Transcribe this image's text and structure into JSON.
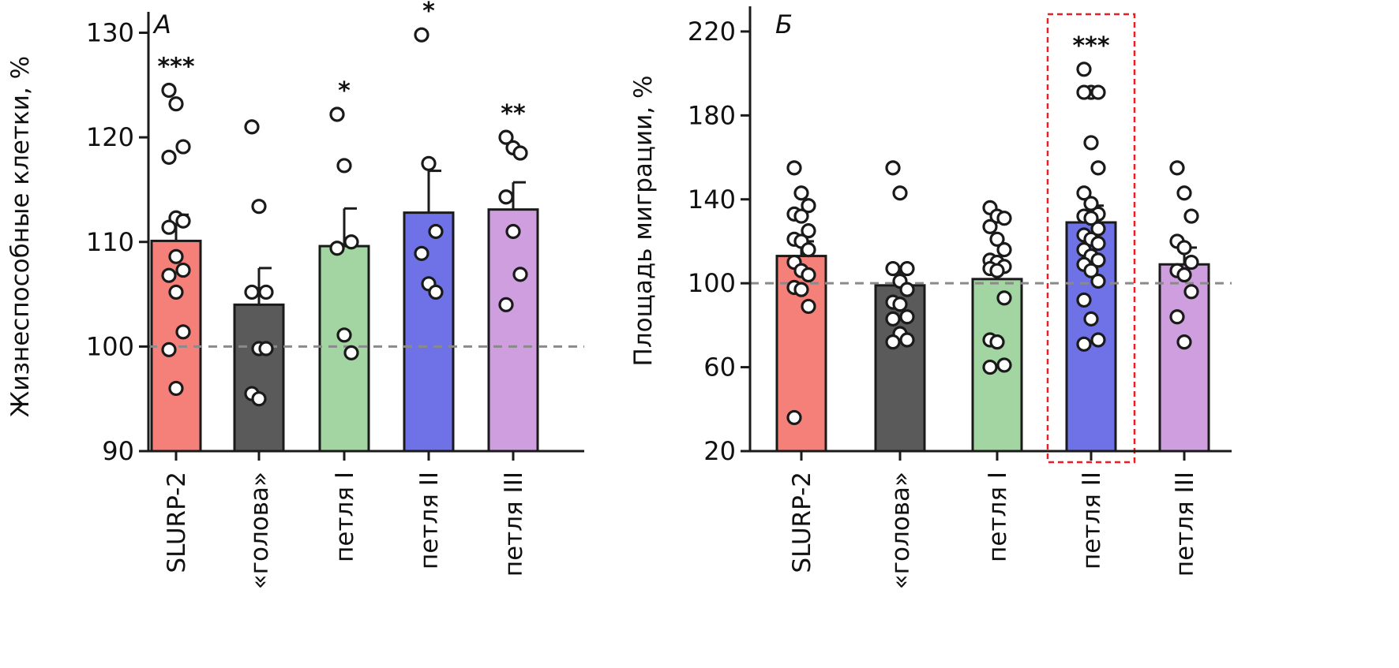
{
  "chart_data": [
    {
      "type": "bar",
      "panel_label": "А",
      "ylabel": "Жизнеспособные клетки, %",
      "ylim": [
        90,
        132
      ],
      "yticks": [
        90,
        100,
        110,
        120,
        130
      ],
      "reference_line": 100,
      "categories": [
        "SLURP-2",
        "«голова»",
        "петля I",
        "петля II",
        "петля III"
      ],
      "colors": [
        "#f5807a",
        "#5a5a5a",
        "#a2d5a1",
        "#6e72e6",
        "#cf9edf"
      ],
      "values": [
        110.1,
        104.0,
        109.6,
        112.8,
        113.1
      ],
      "errors": [
        2.5,
        3.5,
        3.6,
        4.0,
        2.6
      ],
      "significance": [
        "***",
        "",
        "*",
        "*",
        "**"
      ],
      "points": [
        [
          124.5,
          123.2,
          119.1,
          118.1,
          112.3,
          112.0,
          111.4,
          108.6,
          107.3,
          106.8,
          105.2,
          101.4,
          99.7,
          96.0
        ],
        [
          121.0,
          113.4,
          105.2,
          105.2,
          99.8,
          99.8,
          95.5,
          95.0
        ],
        [
          122.2,
          117.3,
          110.0,
          109.4,
          101.1,
          99.4
        ],
        [
          129.8,
          117.5,
          111.0,
          108.9,
          106.0,
          105.2
        ],
        [
          120.0,
          119.0,
          118.5,
          114.3,
          111.0,
          106.9,
          104.0
        ]
      ]
    },
    {
      "type": "bar",
      "panel_label": "Б",
      "ylabel": "Площадь миграции, %",
      "ylim": [
        20,
        232
      ],
      "yticks": [
        20,
        60,
        100,
        140,
        180,
        220
      ],
      "reference_line": 100,
      "categories": [
        "SLURP-2",
        "«голова»",
        "петля I",
        "петля II",
        "петля III"
      ],
      "colors": [
        "#f5807a",
        "#5a5a5a",
        "#a2d5a1",
        "#6e72e6",
        "#cf9edf"
      ],
      "values": [
        113,
        99,
        102,
        129,
        109
      ],
      "errors": [
        7,
        8,
        8,
        8,
        8
      ],
      "significance": [
        "",
        "",
        "",
        "***",
        ""
      ],
      "highlight_category": "петля II",
      "points": [
        [
          155,
          143,
          137,
          133,
          132,
          125,
          121,
          120,
          116,
          110,
          106,
          104,
          98,
          97,
          89,
          36
        ],
        [
          155,
          143,
          107,
          107,
          101,
          97,
          91,
          90,
          84,
          83,
          76,
          73,
          72
        ],
        [
          136,
          132,
          131,
          127,
          121,
          116,
          111,
          110,
          108,
          107,
          106,
          93,
          73,
          72,
          61,
          60
        ],
        [
          202,
          191,
          191,
          191,
          167,
          155,
          143,
          138,
          133,
          132,
          131,
          126,
          123,
          121,
          119,
          116,
          113,
          111,
          109,
          106,
          101,
          92,
          83,
          73,
          71
        ],
        [
          155,
          143,
          132,
          120,
          117,
          110,
          106,
          104,
          96,
          84,
          72
        ]
      ]
    }
  ]
}
